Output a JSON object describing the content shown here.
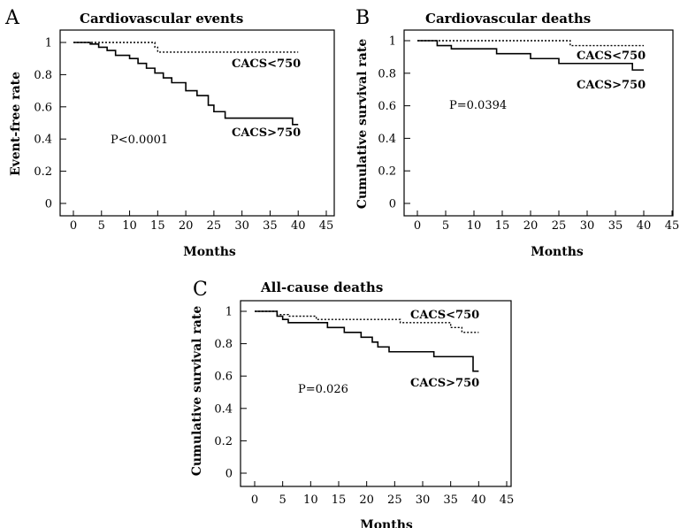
{
  "chart_data": [
    {
      "type": "line",
      "panel": "A",
      "title": "Cardiovascular events",
      "xlabel": "Months",
      "ylabel": "Event-free rate",
      "xlim": [
        0,
        45
      ],
      "ylim": [
        0,
        1
      ],
      "xticks": [
        "0",
        "5",
        "10",
        "15",
        "20",
        "25",
        "30",
        "35",
        "40",
        "45"
      ],
      "yticks": [
        "0",
        "0.2",
        "0.4",
        "0.6",
        "0.8",
        "1"
      ],
      "annotation": "P<0.0001",
      "series": [
        {
          "name": "CACS<750",
          "style": "dotted",
          "x": [
            0,
            13,
            14.5,
            15,
            40
          ],
          "y": [
            1.0,
            1.0,
            0.97,
            0.94,
            0.94
          ]
        },
        {
          "name": "CACS>750",
          "style": "solid",
          "x": [
            0,
            3,
            4.5,
            6,
            7.5,
            10,
            11.5,
            13,
            14.5,
            16,
            17.5,
            20,
            22,
            24,
            25,
            27,
            30,
            39,
            40
          ],
          "y": [
            1.0,
            0.99,
            0.97,
            0.95,
            0.92,
            0.9,
            0.87,
            0.84,
            0.81,
            0.78,
            0.75,
            0.7,
            0.67,
            0.61,
            0.57,
            0.53,
            0.53,
            0.49,
            0.49
          ]
        }
      ]
    },
    {
      "type": "line",
      "panel": "B",
      "title": "Cardiovascular deaths",
      "xlabel": "Months",
      "ylabel": "Cumulative survival rate",
      "xlim": [
        0,
        45
      ],
      "ylim": [
        0,
        1
      ],
      "xticks": [
        "0",
        "5",
        "10",
        "15",
        "20",
        "25",
        "30",
        "35",
        "40",
        "45"
      ],
      "yticks": [
        "0",
        "0.2",
        "0.4",
        "0.6",
        "0.8",
        "1"
      ],
      "annotation": "P=0.0394",
      "series": [
        {
          "name": "CACS<750",
          "style": "dotted",
          "x": [
            0,
            27,
            40
          ],
          "y": [
            1.0,
            0.97,
            0.97
          ]
        },
        {
          "name": "CACS>750",
          "style": "solid",
          "x": [
            0,
            3.5,
            6,
            14,
            20,
            25,
            38,
            40
          ],
          "y": [
            1.0,
            0.97,
            0.95,
            0.92,
            0.89,
            0.86,
            0.82,
            0.82
          ]
        }
      ]
    },
    {
      "type": "line",
      "panel": "C",
      "title": "All-cause deaths",
      "xlabel": "Months",
      "ylabel": "Cumulative survival rate",
      "xlim": [
        0,
        45
      ],
      "ylim": [
        0,
        1
      ],
      "xticks": [
        "0",
        "5",
        "10",
        "15",
        "20",
        "25",
        "30",
        "35",
        "40",
        "45"
      ],
      "yticks": [
        "0",
        "0.2",
        "0.4",
        "0.6",
        "0.8",
        "1"
      ],
      "annotation": "P=0.026",
      "series": [
        {
          "name": "CACS<750",
          "style": "dotted",
          "x": [
            0,
            4,
            6,
            11,
            26,
            35,
            37,
            40
          ],
          "y": [
            1.0,
            0.98,
            0.97,
            0.95,
            0.93,
            0.9,
            0.87,
            0.87
          ]
        },
        {
          "name": "CACS>750",
          "style": "solid",
          "x": [
            0,
            4,
            5,
            6,
            13,
            16,
            19,
            21,
            22,
            24,
            32,
            39,
            40
          ],
          "y": [
            1.0,
            0.97,
            0.95,
            0.93,
            0.9,
            0.87,
            0.84,
            0.81,
            0.78,
            0.75,
            0.72,
            0.63,
            0.63
          ]
        }
      ]
    }
  ]
}
